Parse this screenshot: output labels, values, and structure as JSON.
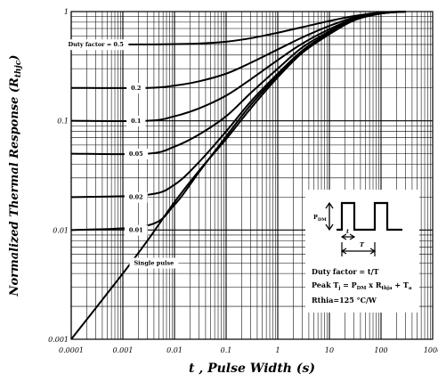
{
  "chart_data": {
    "type": "line",
    "title": "",
    "xlabel": "t , Pulse Width (s)",
    "ylabel_main": "Normalized Thermal Response (R",
    "ylabel_sub": "thjc",
    "ylabel_close": ")",
    "x_scale": "log",
    "y_scale": "log",
    "xlim": [
      0.0001,
      1000
    ],
    "ylim": [
      0.001,
      1
    ],
    "grid": true,
    "x_ticks": [
      {
        "value": 0.0001,
        "label": "0.0001"
      },
      {
        "value": 0.001,
        "label": "0.001"
      },
      {
        "value": 0.01,
        "label": "0.01"
      },
      {
        "value": 0.1,
        "label": "0.1"
      },
      {
        "value": 1,
        "label": "1"
      },
      {
        "value": 10,
        "label": "10"
      },
      {
        "value": 100,
        "label": "100"
      },
      {
        "value": 1000,
        "label": "1000"
      }
    ],
    "y_ticks": [
      {
        "value": 0.001,
        "label": "0.001"
      },
      {
        "value": 0.01,
        "label": "0.01"
      },
      {
        "value": 0.1,
        "label": "0.1"
      },
      {
        "value": 1,
        "label": "1"
      }
    ],
    "series": [
      {
        "name": "Duty factor = 0.5",
        "label_at": [
          0.0003,
          0.5
        ],
        "x": [
          0.0001,
          0.003,
          0.03,
          0.1,
          0.3,
          1,
          3,
          10,
          30,
          100,
          300
        ],
        "y": [
          0.5,
          0.5,
          0.51,
          0.53,
          0.57,
          0.64,
          0.72,
          0.82,
          0.91,
          0.98,
          1.0
        ]
      },
      {
        "name": "0.2",
        "label_at": [
          0.0018,
          0.2
        ],
        "x": [
          0.0001,
          0.003,
          0.01,
          0.03,
          0.1,
          0.3,
          1,
          3,
          10,
          30,
          100,
          300
        ],
        "y": [
          0.2,
          0.2,
          0.21,
          0.23,
          0.27,
          0.34,
          0.45,
          0.58,
          0.74,
          0.88,
          0.97,
          1.0
        ]
      },
      {
        "name": "0.1",
        "label_at": [
          0.0018,
          0.1
        ],
        "x": [
          0.0001,
          0.003,
          0.01,
          0.03,
          0.1,
          0.3,
          1,
          3,
          10,
          30,
          100,
          300
        ],
        "y": [
          0.1,
          0.1,
          0.11,
          0.13,
          0.17,
          0.24,
          0.36,
          0.51,
          0.69,
          0.86,
          0.97,
          1.0
        ]
      },
      {
        "name": "0.05",
        "label_at": [
          0.0018,
          0.05
        ],
        "x": [
          0.0001,
          0.003,
          0.01,
          0.03,
          0.1,
          0.3,
          1,
          3,
          10,
          30,
          100,
          300
        ],
        "y": [
          0.05,
          0.05,
          0.058,
          0.075,
          0.11,
          0.18,
          0.3,
          0.47,
          0.66,
          0.85,
          0.96,
          1.0
        ]
      },
      {
        "name": "0.02",
        "label_at": [
          0.0018,
          0.02
        ],
        "x": [
          0.0001,
          0.003,
          0.01,
          0.03,
          0.1,
          0.3,
          1,
          3,
          10,
          30,
          100,
          300
        ],
        "y": [
          0.02,
          0.021,
          0.026,
          0.042,
          0.08,
          0.15,
          0.27,
          0.44,
          0.64,
          0.84,
          0.96,
          1.0
        ]
      },
      {
        "name": "0.01",
        "label_at": [
          0.0018,
          0.01
        ],
        "x": [
          0.0001,
          0.003,
          0.01,
          0.03,
          0.1,
          0.3,
          1,
          3,
          10,
          30,
          100,
          300
        ],
        "y": [
          0.01,
          0.011,
          0.017,
          0.034,
          0.072,
          0.14,
          0.26,
          0.43,
          0.63,
          0.84,
          0.96,
          1.0
        ]
      },
      {
        "name": "Single pulse",
        "label_at": [
          0.004,
          0.005
        ],
        "x": [
          0.0001,
          0.001,
          0.003,
          0.01,
          0.03,
          0.1,
          0.3,
          1,
          3,
          10,
          30,
          100,
          300
        ],
        "y": [
          0.001,
          0.004,
          0.008,
          0.018,
          0.035,
          0.068,
          0.13,
          0.25,
          0.42,
          0.62,
          0.83,
          0.96,
          1.0
        ]
      }
    ],
    "annotation": {
      "pdm_label": "P",
      "pdm_sub": "DM",
      "t_label": "t",
      "T_label": "T",
      "duty": "Duty factor = t/T",
      "peak_parts": [
        "Peak T",
        "j",
        " = P",
        "DM",
        " x R",
        "thja",
        " + T",
        "a"
      ],
      "rthia": "Rthia=125 °C/W"
    }
  }
}
